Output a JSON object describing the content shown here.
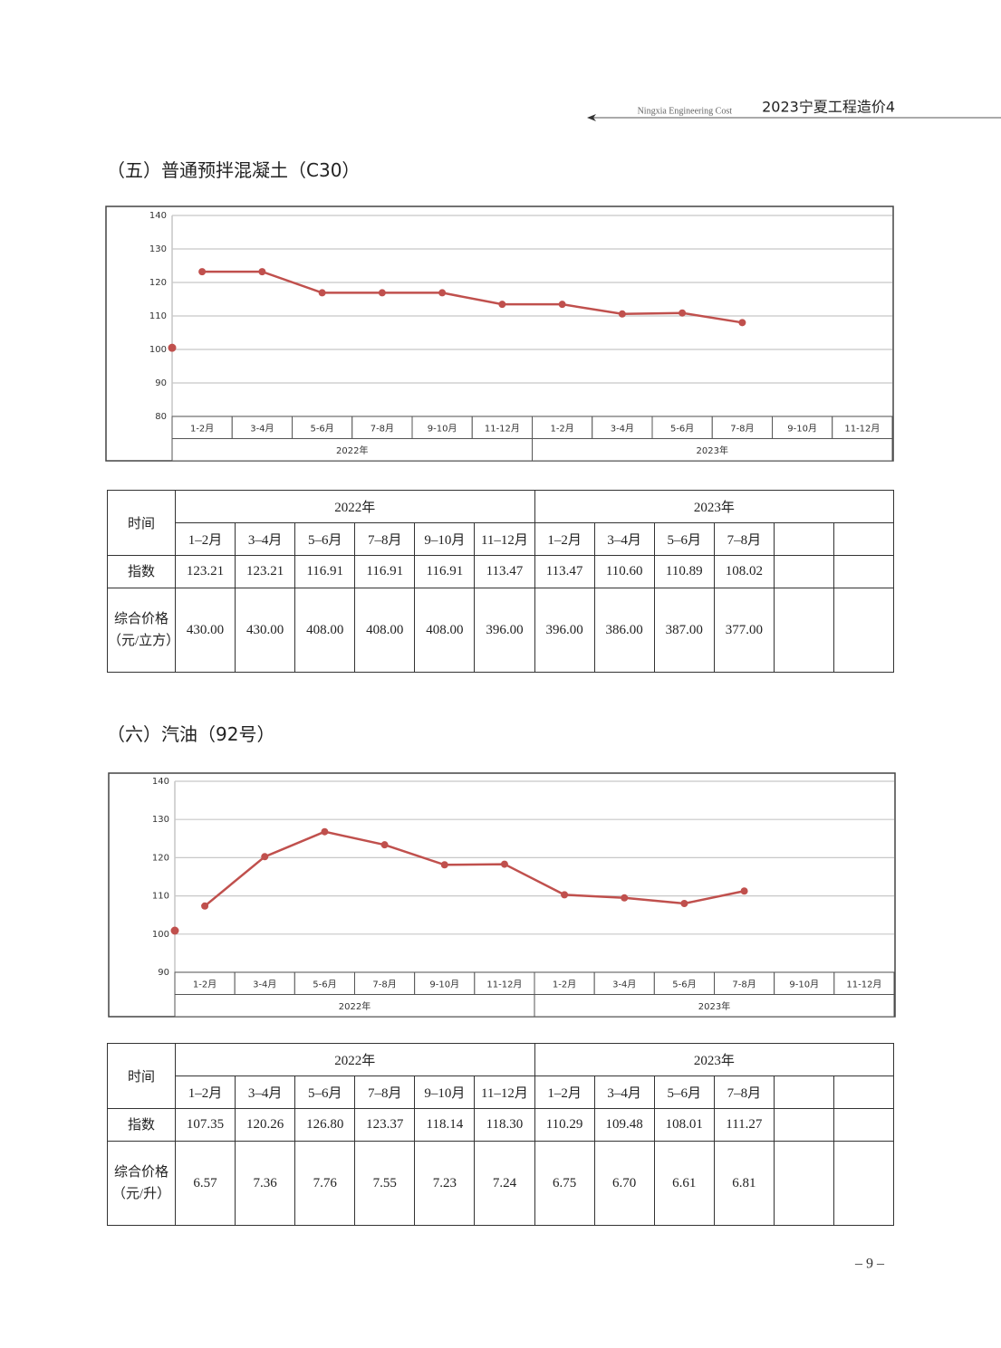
{
  "header": {
    "subtitle": "Ningxia Engineering Cost",
    "title": "2023宁夏工程造价4"
  },
  "chart_data": [
    {
      "type": "line",
      "title": "（五）普通预拌混凝土（C30）",
      "categories": [
        "1-2月",
        "3-4月",
        "5-6月",
        "7-8月",
        "9-10月",
        "11-12月",
        "1-2月",
        "3-4月",
        "5-6月",
        "7-8月",
        "9-10月",
        "11-12月"
      ],
      "groups": [
        "2022年",
        "2023年"
      ],
      "series": [
        {
          "color": "#c0504d",
          "values": [
            123.21,
            123.21,
            116.91,
            116.91,
            116.91,
            113.47,
            113.47,
            110.6,
            110.89,
            108.02,
            null,
            null
          ]
        }
      ],
      "start_value": 100.5,
      "ylim": [
        80,
        140
      ],
      "yticks": [
        80,
        90,
        100,
        110,
        120,
        130,
        140
      ],
      "grid": true
    },
    {
      "type": "line",
      "title": "（六）汽油（92号）",
      "categories": [
        "1-2月",
        "3-4月",
        "5-6月",
        "7-8月",
        "9-10月",
        "11-12月",
        "1-2月",
        "3-4月",
        "5-6月",
        "7-8月",
        "9-10月",
        "11-12月"
      ],
      "groups": [
        "2022年",
        "2023年"
      ],
      "series": [
        {
          "color": "#c0504d",
          "values": [
            107.35,
            120.26,
            126.8,
            123.37,
            118.14,
            118.3,
            110.29,
            109.48,
            108.01,
            111.27,
            null,
            null
          ]
        }
      ],
      "start_value": 100.9,
      "ylim": [
        90,
        140
      ],
      "yticks": [
        90,
        100,
        110,
        120,
        130,
        140
      ],
      "grid": true
    }
  ],
  "tables": [
    {
      "row_header": "时间",
      "years": [
        "2022年",
        "2023年"
      ],
      "months": [
        "1–2月",
        "3–4月",
        "5–6月",
        "7–8月",
        "9–10月",
        "11–12月",
        "1–2月",
        "3–4月",
        "5–6月",
        "7–8月"
      ],
      "rows": [
        {
          "label": [
            "指数"
          ],
          "values": [
            "123.21",
            "123.21",
            "116.91",
            "116.91",
            "116.91",
            "113.47",
            "113.47",
            "110.60",
            "110.89",
            "108.02"
          ]
        },
        {
          "label": [
            "综合价格",
            "（元/立方）"
          ],
          "values": [
            "430.00",
            "430.00",
            "408.00",
            "408.00",
            "408.00",
            "396.00",
            "396.00",
            "386.00",
            "387.00",
            "377.00"
          ]
        }
      ]
    },
    {
      "row_header": "时间",
      "years": [
        "2022年",
        "2023年"
      ],
      "months": [
        "1–2月",
        "3–4月",
        "5–6月",
        "7–8月",
        "9–10月",
        "11–12月",
        "1–2月",
        "3–4月",
        "5–6月",
        "7–8月"
      ],
      "rows": [
        {
          "label": [
            "指数"
          ],
          "values": [
            "107.35",
            "120.26",
            "126.80",
            "123.37",
            "118.14",
            "118.30",
            "110.29",
            "109.48",
            "108.01",
            "111.27"
          ]
        },
        {
          "label": [
            "综合价格",
            "（元/升）"
          ],
          "values": [
            "6.57",
            "7.36",
            "7.76",
            "7.55",
            "7.23",
            "7.24",
            "6.75",
            "6.70",
            "6.61",
            "6.81"
          ]
        }
      ]
    }
  ],
  "page_number": "– 9 –"
}
